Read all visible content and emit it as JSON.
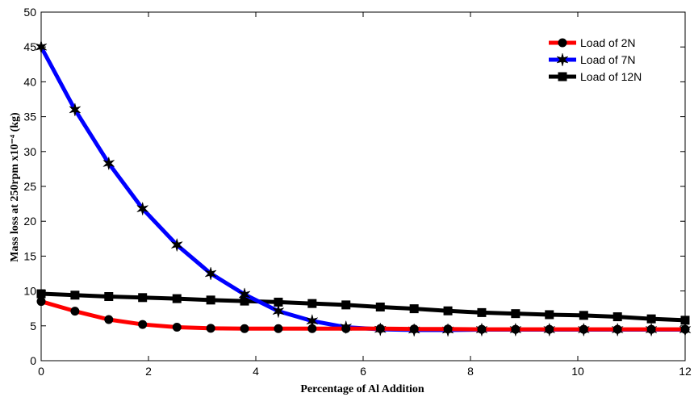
{
  "chart_data": {
    "type": "line",
    "title": "",
    "xlabel": "Percentage of Al Addition",
    "ylabel": "Mass loss at 250rpm x10⁻⁴ (kg)",
    "xlim": [
      0,
      12
    ],
    "ylim": [
      0,
      50
    ],
    "xticks": [
      0,
      2,
      4,
      6,
      8,
      10,
      12
    ],
    "yticks": [
      0,
      5,
      10,
      15,
      20,
      25,
      30,
      35,
      40,
      45,
      50
    ],
    "grid": false,
    "legend_position": "top-right",
    "x": [
      0,
      0.63,
      1.26,
      1.89,
      2.53,
      3.16,
      3.79,
      4.42,
      5.05,
      5.68,
      6.32,
      6.95,
      7.58,
      8.21,
      8.84,
      9.47,
      10.11,
      10.74,
      11.37,
      12
    ],
    "series": [
      {
        "name": "Load of 2N",
        "color": "#ff0000",
        "marker": "circle",
        "values": [
          8.5,
          7.1,
          5.9,
          5.2,
          4.8,
          4.65,
          4.6,
          4.6,
          4.6,
          4.6,
          4.6,
          4.55,
          4.55,
          4.5,
          4.5,
          4.5,
          4.5,
          4.5,
          4.5,
          4.5
        ]
      },
      {
        "name": "Load of 7N",
        "color": "#0000ff",
        "marker": "star",
        "values": [
          45,
          36,
          28.3,
          21.8,
          16.6,
          12.5,
          9.5,
          7.1,
          5.7,
          4.8,
          4.5,
          4.4,
          4.4,
          4.45,
          4.45,
          4.45,
          4.45,
          4.45,
          4.45,
          4.45
        ]
      },
      {
        "name": "Load of 12N",
        "color": "#000000",
        "marker": "square",
        "values": [
          9.6,
          9.4,
          9.2,
          9.05,
          8.9,
          8.7,
          8.55,
          8.4,
          8.2,
          8.0,
          7.7,
          7.45,
          7.15,
          6.9,
          6.75,
          6.6,
          6.5,
          6.3,
          6.0,
          5.8
        ]
      }
    ]
  }
}
